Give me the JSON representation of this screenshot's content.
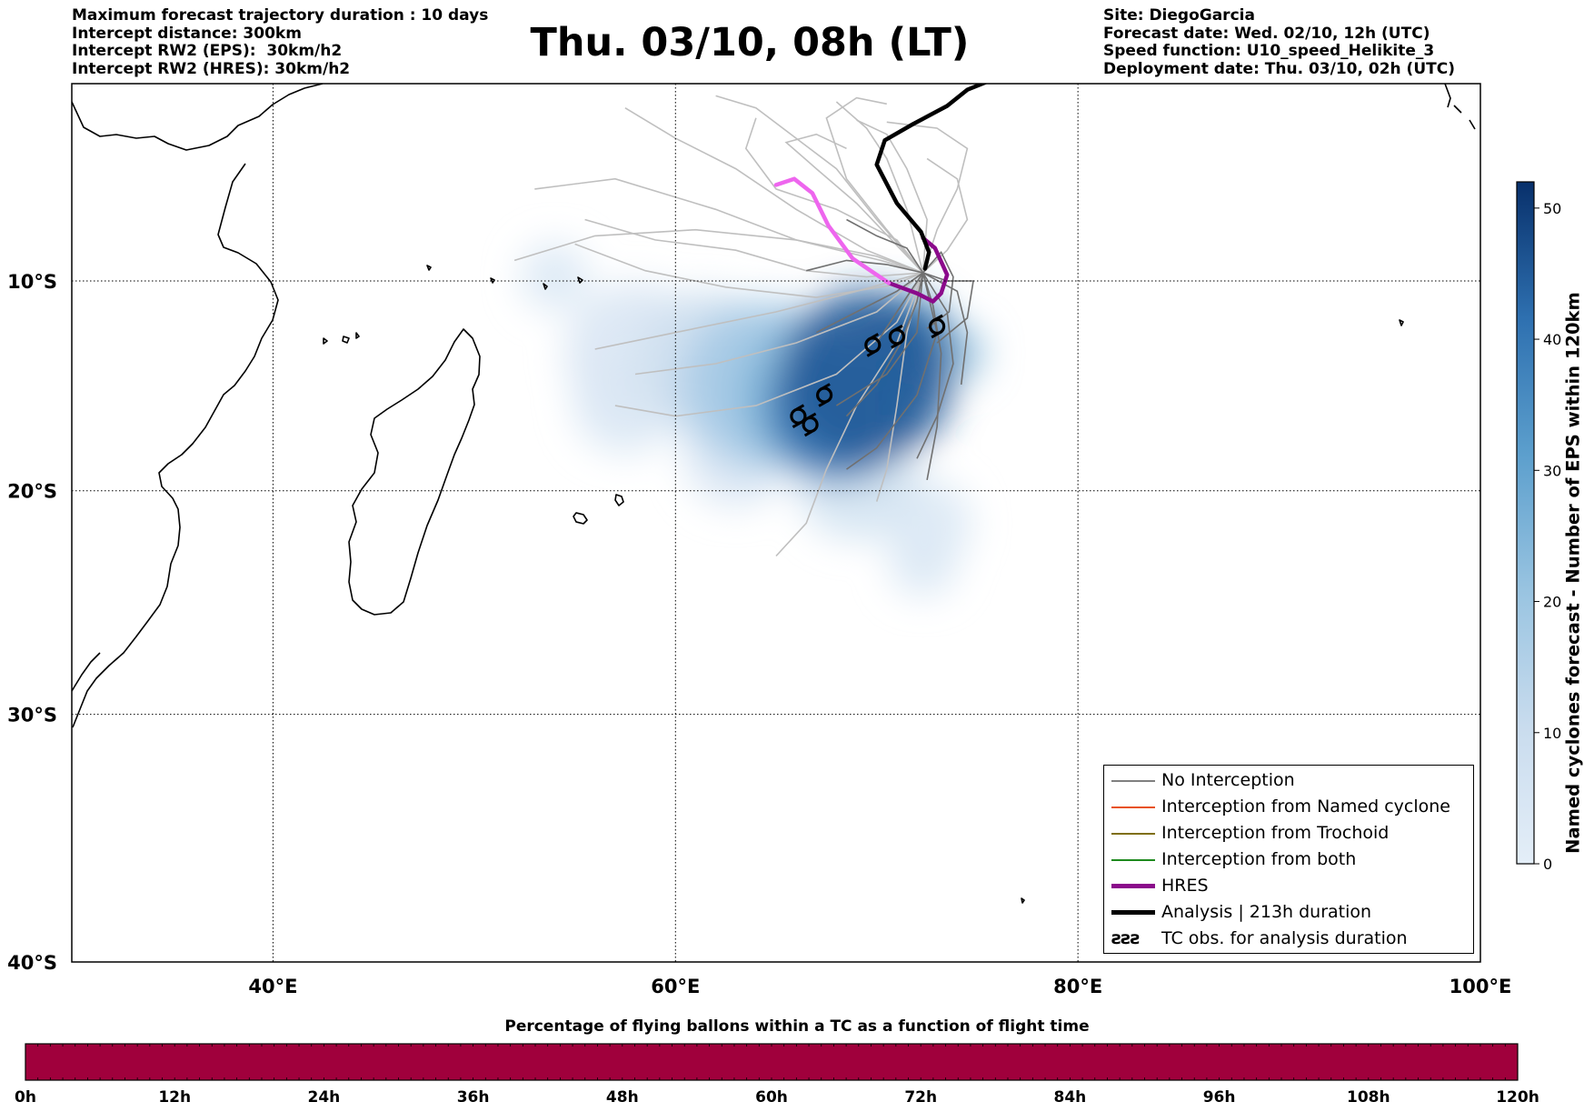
{
  "header": {
    "left_lines": [
      "Maximum forecast trajectory duration : 10 days",
      "Intercept distance: 300km",
      "Intercept RW2 (EPS):  30km/h2",
      "Intercept RW2 (HRES): 30km/h2"
    ],
    "title": "Thu. 03/10, 08h (LT)",
    "right_lines": [
      "Site: DiegoGarcia",
      "Forecast date: Wed. 02/10, 12h (UTC)",
      "Speed function: U10_speed_Helikite_3",
      "Deployment date: Thu. 03/10, 02h (UTC)"
    ]
  },
  "legend": {
    "items": [
      {
        "label": "No Interception",
        "color": "#808080",
        "style": "thin-line"
      },
      {
        "label": "Interception from Named cyclone",
        "color": "#e8521a",
        "style": "thin-line"
      },
      {
        "label": "Interception from Trochoid",
        "color": "#7f6f10",
        "style": "thin-line"
      },
      {
        "label": "Interception from both",
        "color": "#1e8a1e",
        "style": "thin-line"
      },
      {
        "label": "HRES",
        "color": "#8b0a8b",
        "style": "thick-line"
      },
      {
        "label": "Analysis | 213h duration",
        "color": "#000000",
        "style": "thick-line"
      },
      {
        "label": "TC obs. for analysis duration",
        "color": "#000000",
        "style": "symbol"
      }
    ],
    "symbol_glyphs": "ƨƨƨ"
  },
  "colorbar": {
    "label": "Named cyclones forecast - Number of EPS within 120km",
    "ticks": [
      "0",
      "10",
      "20",
      "30",
      "40",
      "50"
    ],
    "tick_values": [
      0,
      10,
      20,
      30,
      40,
      50
    ],
    "max": 52,
    "color_low": "#e4eef8",
    "color_high": "#08306b"
  },
  "pct_bar": {
    "title": "Percentage of flying ballons within a TC as a function of flight time",
    "fill_color": "#a0003c",
    "ticks": [
      "0h",
      "12h",
      "24h",
      "36h",
      "48h",
      "60h",
      "72h",
      "84h",
      "96h",
      "108h",
      "120h"
    ]
  },
  "chart_data": {
    "type": "map",
    "projection": "mercator",
    "lon_range": [
      30,
      100
    ],
    "lat_range": [
      -40,
      -0.3
    ],
    "lon_ticks": [
      {
        "value": 40,
        "label": "40°E"
      },
      {
        "value": 60,
        "label": "60°E"
      },
      {
        "value": 80,
        "label": "80°E"
      },
      {
        "value": 100,
        "label": "100°E"
      }
    ],
    "lat_ticks": [
      {
        "value": -10,
        "label": "10°S"
      },
      {
        "value": -20,
        "label": "20°S"
      },
      {
        "value": -30,
        "label": "30°S"
      },
      {
        "value": -40,
        "label": "40°S"
      }
    ],
    "grid": true,
    "analysis_track": [
      [
        72.4,
        -9.4
      ],
      [
        72.6,
        -8.6
      ],
      [
        72.2,
        -7.6
      ],
      [
        71.0,
        -6.2
      ],
      [
        70.0,
        -4.3
      ],
      [
        70.4,
        -3.1
      ],
      [
        71.8,
        -2.3
      ],
      [
        73.5,
        -1.4
      ],
      [
        74.5,
        -0.6
      ],
      [
        75.5,
        -0.2
      ]
    ],
    "hres_track": [
      [
        72.3,
        -7.9
      ],
      [
        72.9,
        -8.4
      ],
      [
        73.5,
        -9.7
      ],
      [
        73.2,
        -10.6
      ],
      [
        72.8,
        -11.0
      ],
      [
        72.0,
        -10.6
      ],
      [
        70.6,
        -10.1
      ],
      [
        68.8,
        -8.9
      ],
      [
        67.6,
        -7.3
      ],
      [
        66.8,
        -5.7
      ],
      [
        65.9,
        -5.0
      ],
      [
        65.0,
        -5.3
      ]
    ],
    "hres_segments": [
      {
        "color": "#8b0a8b",
        "from": 0,
        "to": 6
      },
      {
        "color": "#ee66ee",
        "from": 6,
        "to": 12
      }
    ],
    "tc_obs": [
      [
        73.0,
        -12.2
      ],
      [
        71.0,
        -12.7
      ],
      [
        69.8,
        -13.1
      ],
      [
        67.4,
        -15.5
      ],
      [
        66.1,
        -16.5
      ],
      [
        66.7,
        -16.9
      ]
    ],
    "density_blobs": [
      {
        "lon": 69.5,
        "lat": -14.6,
        "r": 4.3,
        "value": 45
      },
      {
        "lon": 68.1,
        "lat": -16.2,
        "r": 3.6,
        "value": 40
      },
      {
        "lon": 71.5,
        "lat": -13.0,
        "r": 2.4,
        "value": 35
      },
      {
        "lon": 66.5,
        "lat": -15.5,
        "r": 3.6,
        "value": 24
      },
      {
        "lon": 64.5,
        "lat": -15.0,
        "r": 4.2,
        "value": 18
      },
      {
        "lon": 61.5,
        "lat": -14.0,
        "r": 3.6,
        "value": 8
      },
      {
        "lon": 58.0,
        "lat": -13.5,
        "r": 3.5,
        "value": 4
      },
      {
        "lon": 57.5,
        "lat": -15.8,
        "r": 2.6,
        "value": 3
      },
      {
        "lon": 69.0,
        "lat": -19.5,
        "r": 3.0,
        "value": 6
      },
      {
        "lon": 72.5,
        "lat": -21.5,
        "r": 2.2,
        "value": 3
      },
      {
        "lon": 72.3,
        "lat": -23.3,
        "r": 1.7,
        "value": 3
      },
      {
        "lon": 54.0,
        "lat": -9.8,
        "r": 1.7,
        "value": 3
      },
      {
        "lon": 63.0,
        "lat": -18.3,
        "r": 2.6,
        "value": 4
      },
      {
        "lon": 74.0,
        "lat": -13.5,
        "r": 1.4,
        "value": 20
      }
    ],
    "eps_light_tracks": [
      [
        [
          72.3,
          -9.6
        ],
        [
          70.2,
          -9.0
        ],
        [
          66.0,
          -8.0
        ],
        [
          62.0,
          -6.5
        ],
        [
          57.0,
          -5.0
        ],
        [
          53.0,
          -5.5
        ]
      ],
      [
        [
          72.3,
          -9.6
        ],
        [
          69.5,
          -8.5
        ],
        [
          66.0,
          -6.5
        ],
        [
          63.0,
          -4.5
        ],
        [
          60.0,
          -3.0
        ],
        [
          57.5,
          -1.5
        ]
      ],
      [
        [
          72.3,
          -9.6
        ],
        [
          70.0,
          -8.8
        ],
        [
          66.0,
          -8.0
        ],
        [
          61.0,
          -7.5
        ],
        [
          56.0,
          -7.8
        ],
        [
          52.0,
          -9.0
        ]
      ],
      [
        [
          72.3,
          -9.6
        ],
        [
          70.5,
          -7.5
        ],
        [
          68.5,
          -5.0
        ],
        [
          67.5,
          -2.0
        ],
        [
          69.0,
          -1.0
        ],
        [
          70.5,
          -1.3
        ]
      ],
      [
        [
          72.3,
          -9.6
        ],
        [
          69.0,
          -10.5
        ],
        [
          65.0,
          -11.5
        ],
        [
          60.0,
          -12.5
        ],
        [
          56.0,
          -13.3
        ]
      ],
      [
        [
          72.3,
          -9.6
        ],
        [
          70.0,
          -11.5
        ],
        [
          66.0,
          -13.0
        ],
        [
          62.0,
          -14.0
        ],
        [
          58.0,
          -14.5
        ]
      ],
      [
        [
          72.3,
          -9.6
        ],
        [
          71.0,
          -12.0
        ],
        [
          68.0,
          -14.5
        ],
        [
          64.0,
          -16.0
        ],
        [
          60.0,
          -16.5
        ],
        [
          57.0,
          -16.0
        ]
      ],
      [
        [
          72.3,
          -9.6
        ],
        [
          71.0,
          -13.0
        ],
        [
          69.0,
          -16.0
        ],
        [
          67.5,
          -19.0
        ],
        [
          66.5,
          -21.5
        ],
        [
          65.0,
          -23.0
        ]
      ],
      [
        [
          72.3,
          -9.6
        ],
        [
          71.5,
          -12.5
        ],
        [
          71.0,
          -16.0
        ],
        [
          70.5,
          -19.0
        ],
        [
          70.0,
          -20.5
        ]
      ],
      [
        [
          72.3,
          -9.6
        ],
        [
          72.5,
          -7.0
        ],
        [
          71.5,
          -4.5
        ],
        [
          70.5,
          -2.8
        ],
        [
          69.0,
          -2.1
        ]
      ],
      [
        [
          72.3,
          -9.6
        ],
        [
          73.0,
          -7.5
        ],
        [
          74.0,
          -5.5
        ],
        [
          74.5,
          -3.5
        ],
        [
          73.0,
          -2.5
        ],
        [
          70.5,
          -2.2
        ]
      ],
      [
        [
          72.3,
          -9.6
        ],
        [
          71.0,
          -8.0
        ],
        [
          68.0,
          -6.5
        ],
        [
          65.0,
          -5.5
        ],
        [
          63.5,
          -3.5
        ],
        [
          64.0,
          -2.0
        ]
      ],
      [
        [
          72.3,
          -9.6
        ],
        [
          69.5,
          -9.8
        ],
        [
          66.5,
          -9.5
        ],
        [
          63.0,
          -8.5
        ],
        [
          59.0,
          -8.0
        ],
        [
          55.5,
          -7.0
        ]
      ],
      [
        [
          72.3,
          -9.6
        ],
        [
          70.0,
          -7.0
        ],
        [
          68.0,
          -4.5
        ],
        [
          66.0,
          -3.0
        ],
        [
          64.0,
          -1.5
        ],
        [
          62.0,
          -0.9
        ]
      ],
      [
        [
          72.3,
          -9.6
        ],
        [
          71.5,
          -6.5
        ],
        [
          70.5,
          -4.0
        ],
        [
          69.5,
          -2.5
        ],
        [
          68.0,
          -1.2
        ]
      ],
      [
        [
          72.3,
          -9.6
        ],
        [
          73.5,
          -8.5
        ],
        [
          74.5,
          -7.0
        ],
        [
          74.0,
          -5.0
        ],
        [
          72.5,
          -4.0
        ]
      ],
      [
        [
          72.3,
          -9.6
        ],
        [
          70.8,
          -10.2
        ],
        [
          67.0,
          -10.8
        ],
        [
          62.5,
          -10.3
        ],
        [
          58.5,
          -9.5
        ],
        [
          55.0,
          -8.2
        ]
      ],
      [
        [
          72.3,
          -9.6
        ],
        [
          69.0,
          -6.2
        ],
        [
          67.0,
          -4.5
        ],
        [
          65.5,
          -3.2
        ],
        [
          67.0,
          -2.8
        ],
        [
          68.5,
          -3.5
        ]
      ]
    ],
    "eps_dark_tracks": [
      [
        [
          72.3,
          -9.6
        ],
        [
          72.0,
          -11.0
        ],
        [
          71.2,
          -13.0
        ],
        [
          70.0,
          -15.0
        ],
        [
          68.5,
          -16.5
        ]
      ],
      [
        [
          72.3,
          -9.6
        ],
        [
          73.5,
          -11.5
        ],
        [
          73.8,
          -14.0
        ],
        [
          73.0,
          -16.5
        ],
        [
          72.0,
          -18.5
        ]
      ],
      [
        [
          72.3,
          -9.6
        ],
        [
          74.0,
          -10.5
        ],
        [
          74.5,
          -12.5
        ],
        [
          74.2,
          -15.0
        ]
      ],
      [
        [
          72.3,
          -9.6
        ],
        [
          71.0,
          -10.5
        ],
        [
          69.0,
          -11.5
        ],
        [
          67.0,
          -12.5
        ]
      ],
      [
        [
          72.3,
          -9.6
        ],
        [
          70.5,
          -9.2
        ],
        [
          68.5,
          -9.0
        ],
        [
          66.5,
          -9.5
        ]
      ],
      [
        [
          72.3,
          -9.6
        ],
        [
          73.0,
          -12.5
        ],
        [
          72.0,
          -15.5
        ],
        [
          70.0,
          -18.0
        ],
        [
          68.5,
          -19.0
        ]
      ],
      [
        [
          72.3,
          -9.6
        ],
        [
          71.5,
          -8.4
        ],
        [
          70.0,
          -7.8
        ],
        [
          68.5,
          -7.0
        ]
      ],
      [
        [
          72.3,
          -9.6
        ],
        [
          73.5,
          -10.0
        ],
        [
          74.8,
          -10.0
        ],
        [
          74.5,
          -11.8
        ],
        [
          73.0,
          -13.0
        ]
      ],
      [
        [
          72.3,
          -9.6
        ],
        [
          72.0,
          -12.5
        ],
        [
          70.5,
          -14.5
        ],
        [
          68.0,
          -16.0
        ]
      ],
      [
        [
          72.3,
          -9.6
        ],
        [
          71.0,
          -11.5
        ],
        [
          70.0,
          -13.0
        ]
      ],
      [
        [
          72.3,
          -9.6
        ],
        [
          73.2,
          -8.6
        ],
        [
          73.8,
          -9.8
        ],
        [
          73.6,
          -11.5
        ],
        [
          72.5,
          -12.3
        ]
      ],
      [
        [
          72.3,
          -9.6
        ],
        [
          72.8,
          -11.2
        ],
        [
          73.2,
          -13.5
        ],
        [
          73.0,
          -17.0
        ],
        [
          72.5,
          -19.5
        ]
      ]
    ]
  }
}
